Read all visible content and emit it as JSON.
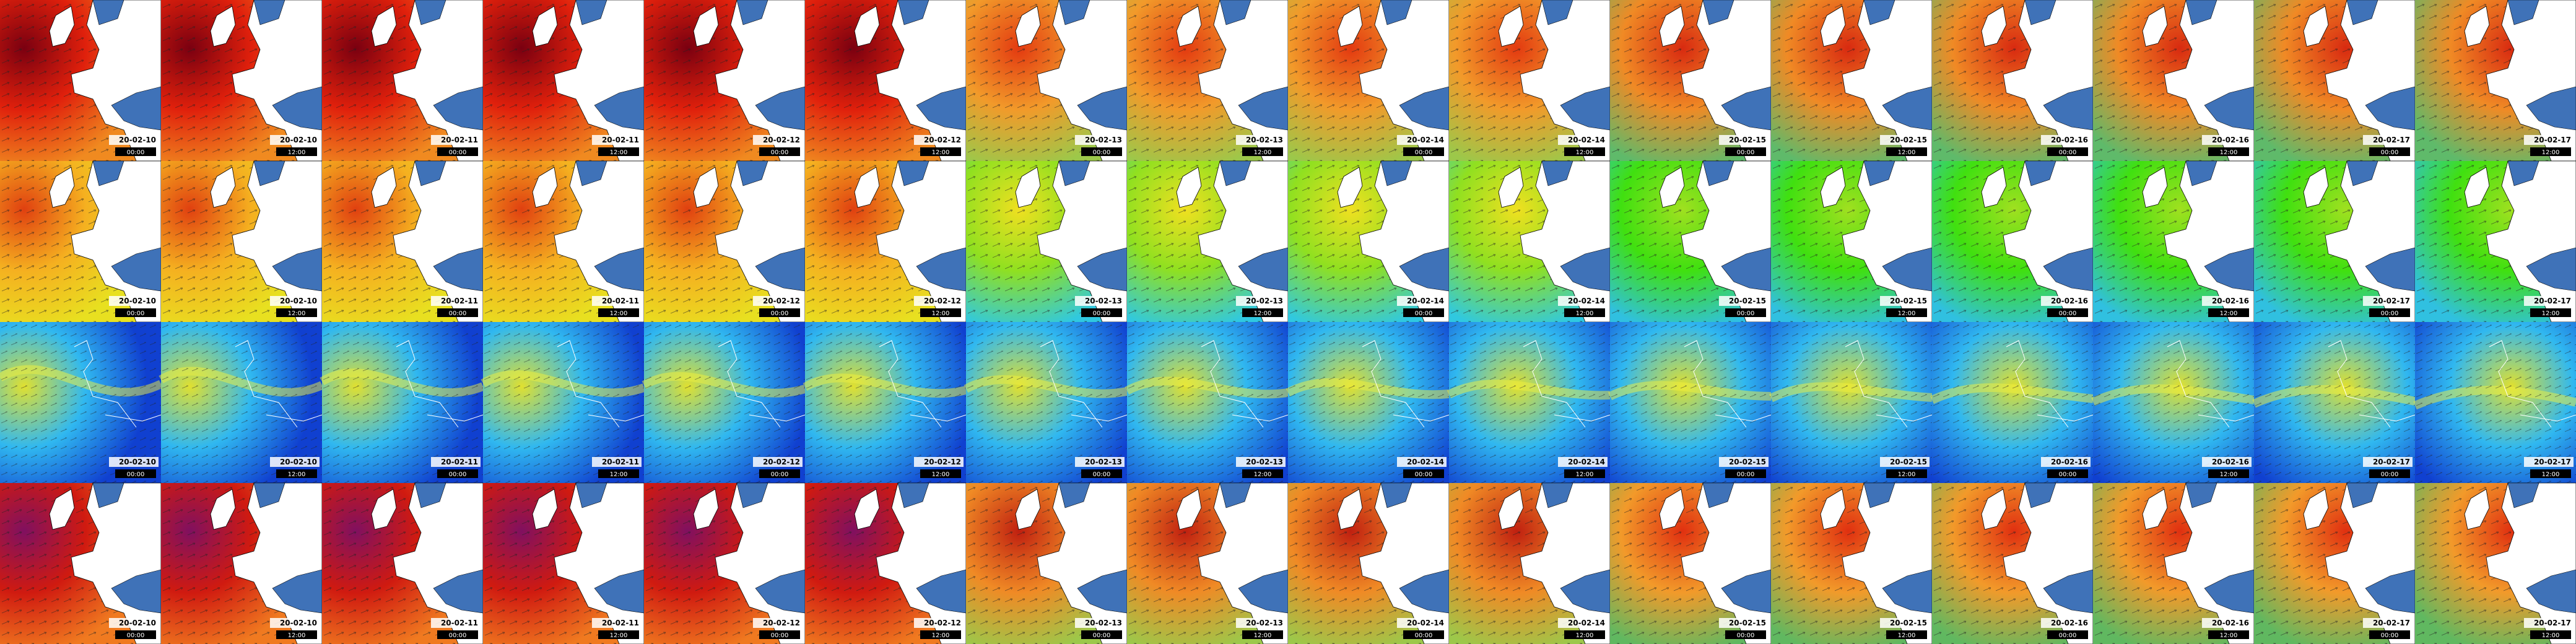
{
  "rows": 4,
  "columns": [
    {
      "date": "20-02-10",
      "time": "00:00"
    },
    {
      "date": "20-02-10",
      "time": "12:00"
    },
    {
      "date": "20-02-11",
      "time": "00:00"
    },
    {
      "date": "20-02-11",
      "time": "12:00"
    },
    {
      "date": "20-02-12",
      "time": "00:00"
    },
    {
      "date": "20-02-12",
      "time": "12:00"
    },
    {
      "date": "20-02-13",
      "time": "00:00"
    },
    {
      "date": "20-02-13",
      "time": "12:00"
    },
    {
      "date": "20-02-14",
      "time": "00:00"
    },
    {
      "date": "20-02-14",
      "time": "12:00"
    },
    {
      "date": "20-02-15",
      "time": "00:00"
    },
    {
      "date": "20-02-15",
      "time": "12:00"
    },
    {
      "date": "20-02-16",
      "time": "00:00"
    },
    {
      "date": "20-02-16",
      "time": "12:00"
    },
    {
      "date": "20-02-17",
      "time": "00:00"
    },
    {
      "date": "20-02-17",
      "time": "12:00"
    }
  ]
}
